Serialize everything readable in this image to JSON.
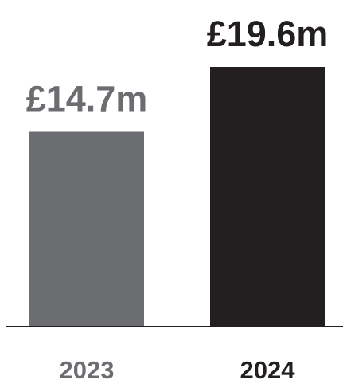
{
  "chart_data": {
    "type": "bar",
    "categories": [
      "2023",
      "2024"
    ],
    "values": [
      14.7,
      19.6
    ],
    "value_labels": [
      "£14.7m",
      "£19.6m"
    ],
    "colors": [
      "#6b6d70",
      "#231f20"
    ],
    "label_colors": [
      "#6b6d70",
      "#231f20"
    ],
    "axis_color": "#231f20",
    "ylim": [
      0,
      19.6
    ],
    "unit": "£m",
    "grid": false,
    "title": "",
    "xlabel": "",
    "ylabel": ""
  }
}
